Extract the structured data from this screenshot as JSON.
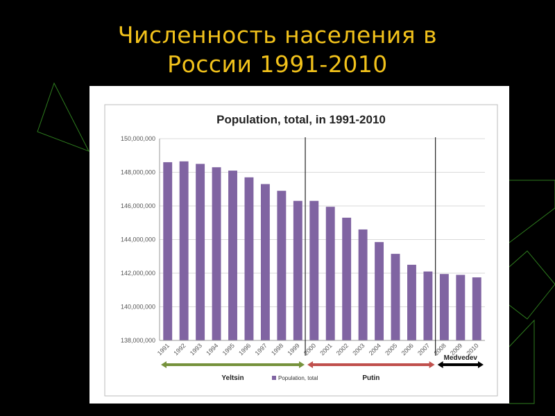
{
  "slide": {
    "title_line1": "Численность населения в",
    "title_line2": "России 1991-2010",
    "title_color": "#f2c21b",
    "background": "#000000",
    "decoration_color": "#2e7d1e"
  },
  "chart_data": {
    "type": "bar",
    "title": "Population, total, in 1991-2010",
    "xlabel": "",
    "ylabel": "",
    "categories": [
      "1991",
      "1992",
      "1993",
      "1994",
      "1995",
      "1996",
      "1997",
      "1998",
      "1999",
      "2000",
      "2001",
      "2002",
      "2003",
      "2004",
      "2005",
      "2006",
      "2007",
      "2008",
      "2009",
      "2010"
    ],
    "series": [
      {
        "name": "Population, total",
        "color": "#8064a2",
        "values": [
          148600000,
          148650000,
          148500000,
          148300000,
          148100000,
          147700000,
          147300000,
          146900000,
          146300000,
          146300000,
          145950000,
          145300000,
          144600000,
          143850000,
          143150000,
          142500000,
          142100000,
          141950000,
          141900000,
          141750000
        ]
      }
    ],
    "ylim": [
      138000000,
      150000000
    ],
    "yticks": [
      138000000,
      140000000,
      142000000,
      144000000,
      146000000,
      148000000,
      150000000
    ],
    "ytick_labels": [
      "138,000,000",
      "140,000,000",
      "142,000,000",
      "144,000,000",
      "146,000,000",
      "148,000,000",
      "150,000,000"
    ],
    "grid": true,
    "legend_position": "bottom-center",
    "annotations": {
      "dividers_after": [
        "1999",
        "2007"
      ],
      "eras": [
        {
          "label": "Yeltsin",
          "start": "1991",
          "end": "1999",
          "color": "#76923c"
        },
        {
          "label": "Putin",
          "start": "2000",
          "end": "2007",
          "color": "#c0504d"
        },
        {
          "label": "Medvedev",
          "start": "2008",
          "end": "2010",
          "color": "#000000"
        }
      ]
    }
  }
}
